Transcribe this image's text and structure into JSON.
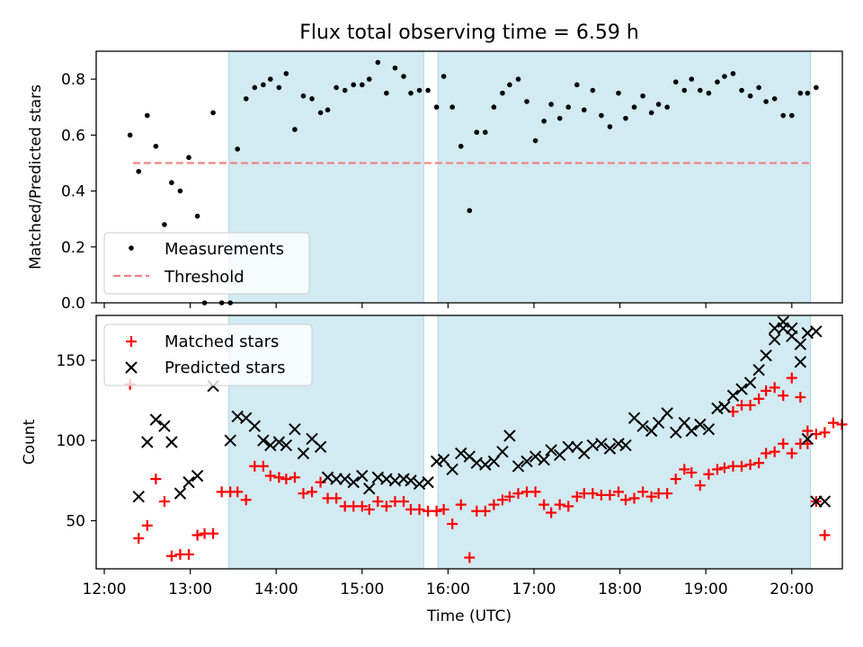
{
  "figure": {
    "title": "Flux total observing time = 6.59 h",
    "xlabel": "Time (UTC)"
  },
  "colors": {
    "span": "#add8e6",
    "measurement": "#000000",
    "threshold": "#f08080",
    "matched": "#ff0000",
    "predicted": "#000000"
  },
  "chart_data": [
    {
      "type": "scatter",
      "panel": "top",
      "ylabel": "Matched/Predicted stars",
      "xlim": [
        "12:00",
        "20:40"
      ],
      "ylim": [
        0,
        0.9
      ],
      "x_ticks": [
        "12:00",
        "13:00",
        "14:00",
        "15:00",
        "16:00",
        "17:00",
        "18:00",
        "19:00",
        "20:00"
      ],
      "y_ticks": [
        "0.0",
        "0.2",
        "0.4",
        "0.6",
        "0.8"
      ],
      "grid": false,
      "legend": "lower-left",
      "spans": [
        {
          "start": "13:27",
          "end": "15:43"
        },
        {
          "start": "15:53",
          "end": "20:13"
        }
      ],
      "threshold": {
        "name": "Threshold",
        "value": 0.5,
        "from": "12:20",
        "to": "20:13"
      },
      "series": [
        {
          "name": "Measurements",
          "x": [
            "12:18",
            "12:24",
            "12:30",
            "12:36",
            "12:42",
            "12:47",
            "12:53",
            "12:59",
            "13:05",
            "13:10",
            "13:16",
            "13:22",
            "13:28",
            "13:33",
            "13:39",
            "13:45",
            "13:51",
            "13:56",
            "14:02",
            "14:07",
            "14:13",
            "14:19",
            "14:25",
            "14:31",
            "14:36",
            "14:42",
            "14:48",
            "14:54",
            "15:00",
            "15:05",
            "15:11",
            "15:17",
            "15:23",
            "15:29",
            "15:34",
            "15:40",
            "15:46",
            "15:52",
            "15:57",
            "16:03",
            "16:09",
            "16:15",
            "16:20",
            "16:26",
            "16:32",
            "16:38",
            "16:43",
            "16:49",
            "16:55",
            "17:01",
            "17:07",
            "17:12",
            "17:18",
            "17:24",
            "17:30",
            "17:35",
            "17:41",
            "17:47",
            "17:53",
            "17:59",
            "18:04",
            "18:10",
            "18:16",
            "18:22",
            "18:27",
            "18:33",
            "18:39",
            "18:45",
            "18:50",
            "18:56",
            "19:02",
            "19:08",
            "19:13",
            "19:19",
            "19:25",
            "19:31",
            "19:37",
            "19:42",
            "19:48",
            "19:54",
            "20:00",
            "20:06",
            "20:11",
            "20:17"
          ],
          "y": [
            0.6,
            0.47,
            0.67,
            0.56,
            0.28,
            0.43,
            0.4,
            0.52,
            0.31,
            0.0,
            0.68,
            0.0,
            0.0,
            0.55,
            0.73,
            0.77,
            0.78,
            0.8,
            0.77,
            0.82,
            0.62,
            0.74,
            0.73,
            0.68,
            0.69,
            0.77,
            0.76,
            0.78,
            0.78,
            0.8,
            0.86,
            0.75,
            0.84,
            0.81,
            0.75,
            0.76,
            0.76,
            0.7,
            0.81,
            0.7,
            0.56,
            0.33,
            0.61,
            0.61,
            0.7,
            0.75,
            0.78,
            0.8,
            0.72,
            0.58,
            0.65,
            0.71,
            0.66,
            0.7,
            0.78,
            0.69,
            0.76,
            0.67,
            0.63,
            0.75,
            0.66,
            0.7,
            0.74,
            0.68,
            0.71,
            0.7,
            0.79,
            0.76,
            0.8,
            0.76,
            0.75,
            0.79,
            0.81,
            0.82,
            0.76,
            0.74,
            0.77,
            0.72,
            0.73,
            0.67,
            0.67,
            0.75,
            0.75,
            0.77
          ]
        }
      ]
    },
    {
      "type": "scatter",
      "panel": "bottom",
      "ylabel": "Count",
      "xlim": [
        "12:00",
        "20:40"
      ],
      "ylim": [
        20,
        178
      ],
      "x_ticks": [
        "12:00",
        "13:00",
        "14:00",
        "15:00",
        "16:00",
        "17:00",
        "18:00",
        "19:00",
        "20:00"
      ],
      "y_ticks": [
        "50",
        "100",
        "150"
      ],
      "grid": false,
      "legend": "top-left",
      "spans": [
        {
          "start": "13:27",
          "end": "15:43"
        },
        {
          "start": "15:53",
          "end": "20:13"
        }
      ],
      "series": [
        {
          "name": "Matched stars",
          "marker": "+",
          "x": [
            "12:18",
            "12:24",
            "12:30",
            "12:36",
            "12:42",
            "12:47",
            "12:53",
            "12:59",
            "13:05",
            "13:10",
            "13:16",
            "13:22",
            "13:28",
            "13:33",
            "13:39",
            "13:45",
            "13:51",
            "13:56",
            "14:02",
            "14:07",
            "14:13",
            "14:19",
            "14:25",
            "14:31",
            "14:36",
            "14:42",
            "14:48",
            "14:54",
            "15:00",
            "15:05",
            "15:11",
            "15:17",
            "15:23",
            "15:29",
            "15:34",
            "15:40",
            "15:46",
            "15:52",
            "15:57",
            "16:03",
            "16:09",
            "16:15",
            "16:20",
            "16:26",
            "16:32",
            "16:38",
            "16:43",
            "16:49",
            "16:55",
            "17:01",
            "17:07",
            "17:12",
            "17:18",
            "17:24",
            "17:30",
            "17:35",
            "17:41",
            "17:47",
            "17:53",
            "17:59",
            "18:04",
            "18:10",
            "18:16",
            "18:22",
            "18:27",
            "18:33",
            "18:39",
            "18:45",
            "18:50",
            "18:56",
            "19:02",
            "19:08",
            "19:13",
            "19:19",
            "19:25",
            "19:31",
            "19:37",
            "19:42",
            "19:48",
            "19:54",
            "20:00",
            "20:06",
            "20:11",
            "20:17",
            "20:23",
            "20:29",
            "20:35"
          ],
          "y": [
            135,
            39,
            47,
            76,
            62,
            28,
            29,
            29,
            41,
            42,
            42,
            68,
            68,
            68,
            63,
            84,
            84,
            78,
            77,
            76,
            77,
            67,
            68,
            74,
            64,
            64,
            59,
            59,
            59,
            57,
            62,
            59,
            62,
            62,
            57,
            57,
            56,
            56,
            57,
            48,
            60,
            27,
            56,
            56,
            60,
            63,
            65,
            67,
            68,
            68,
            60,
            55,
            60,
            59,
            65,
            67,
            67,
            66,
            66,
            68,
            63,
            64,
            68,
            65,
            67,
            67,
            76,
            82,
            80,
            72,
            79,
            82,
            83,
            84,
            84,
            85,
            86,
            92,
            93,
            98,
            92,
            98,
            98,
            104,
            105,
            111,
            110
          ],
          "x2": [
            "19:19",
            "19:25",
            "19:31",
            "19:37",
            "19:42",
            "19:48",
            "19:54",
            "20:00",
            "20:06",
            "20:11",
            "20:17",
            "20:23"
          ],
          "y2": [
            118,
            122,
            122,
            126,
            131,
            133,
            128,
            139,
            127,
            106,
            62,
            41
          ]
        },
        {
          "name": "Predicted stars",
          "marker": "x",
          "x": [
            "12:24",
            "12:30",
            "12:36",
            "12:42",
            "12:47",
            "12:53",
            "12:59",
            "13:05",
            "13:16",
            "13:28",
            "13:33",
            "13:39",
            "13:45",
            "13:51",
            "13:56",
            "14:02",
            "14:07",
            "14:13",
            "14:19",
            "14:25",
            "14:31",
            "14:36",
            "14:42",
            "14:48",
            "14:54",
            "15:00",
            "15:05",
            "15:11",
            "15:17",
            "15:23",
            "15:29",
            "15:34",
            "15:40",
            "15:46",
            "15:52",
            "15:57",
            "16:03",
            "16:09",
            "16:15",
            "16:20",
            "16:26",
            "16:32",
            "16:38",
            "16:43",
            "16:49",
            "16:55",
            "17:01",
            "17:07",
            "17:12",
            "17:18",
            "17:24",
            "17:30",
            "17:35",
            "17:41",
            "17:47",
            "17:53",
            "17:59",
            "18:04",
            "18:10",
            "18:16",
            "18:22",
            "18:27",
            "18:33",
            "18:39",
            "18:45",
            "18:50",
            "18:56",
            "19:02",
            "19:08",
            "19:13",
            "19:19",
            "19:25",
            "19:31",
            "19:37",
            "19:42",
            "19:48",
            "19:54",
            "20:00",
            "20:06",
            "20:11",
            "20:17"
          ],
          "y": [
            65,
            99,
            113,
            109,
            99,
            67,
            74,
            78,
            134,
            100,
            115,
            114,
            109,
            100,
            97,
            99,
            97,
            107,
            92,
            101,
            96,
            77,
            76,
            76,
            74,
            78,
            70,
            77,
            76,
            75,
            76,
            75,
            73,
            74,
            87,
            88,
            82,
            92,
            90,
            86,
            85,
            87,
            93,
            103,
            84,
            87,
            90,
            88,
            94,
            91,
            96,
            96,
            92,
            97,
            98,
            95,
            98,
            97,
            114,
            109,
            106,
            111,
            117,
            105,
            111,
            106,
            110,
            107,
            120,
            121,
            128,
            132,
            136,
            144,
            153,
            163,
            170,
            165,
            160,
            167,
            168
          ]
        }
      ],
      "predicted_tail": {
        "x": [
          "19:48",
          "19:54",
          "20:00",
          "20:06",
          "20:11",
          "20:17",
          "20:23"
        ],
        "y": [
          170,
          174,
          170,
          149,
          101,
          62,
          62
        ]
      }
    }
  ]
}
